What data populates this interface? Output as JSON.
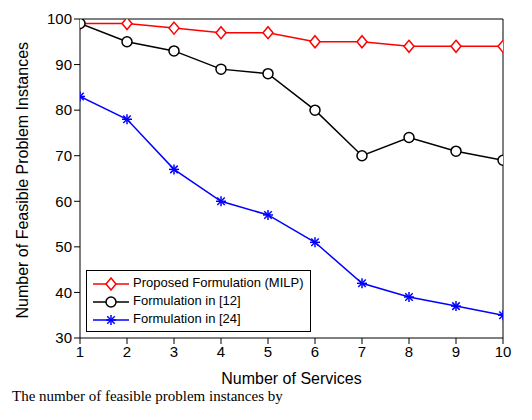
{
  "chart_data": {
    "type": "line",
    "x_label": "Number of Services",
    "y_label": "Number of Feasible Problem Instances",
    "annotations": [
      "The number of feasible problem instances by"
    ],
    "x": [
      1,
      2,
      3,
      4,
      5,
      6,
      7,
      8,
      9,
      10
    ],
    "xlim": [
      1,
      10
    ],
    "xticks": [
      1,
      2,
      3,
      4,
      5,
      6,
      7,
      8,
      9,
      10
    ],
    "ylim": [
      30,
      100
    ],
    "yticks": [
      30,
      40,
      50,
      60,
      70,
      80,
      90,
      100
    ],
    "grid": false,
    "legend": "lower left",
    "series": [
      {
        "name": "Proposed Formulation (MILP)",
        "color": "#ff0000",
        "marker": "diamond",
        "values": [
          99,
          99,
          98,
          97,
          97,
          95,
          95,
          94,
          94,
          94
        ]
      },
      {
        "name": "Formulation in [12]",
        "color": "#000000",
        "marker": "circle",
        "values": [
          99,
          95,
          93,
          89,
          88,
          80,
          70,
          74,
          71,
          69
        ]
      },
      {
        "name": "Formulation in [24]",
        "color": "#0000ff",
        "marker": "star",
        "values": [
          83,
          78,
          67,
          60,
          57,
          51,
          42,
          39,
          37,
          35
        ]
      }
    ]
  }
}
